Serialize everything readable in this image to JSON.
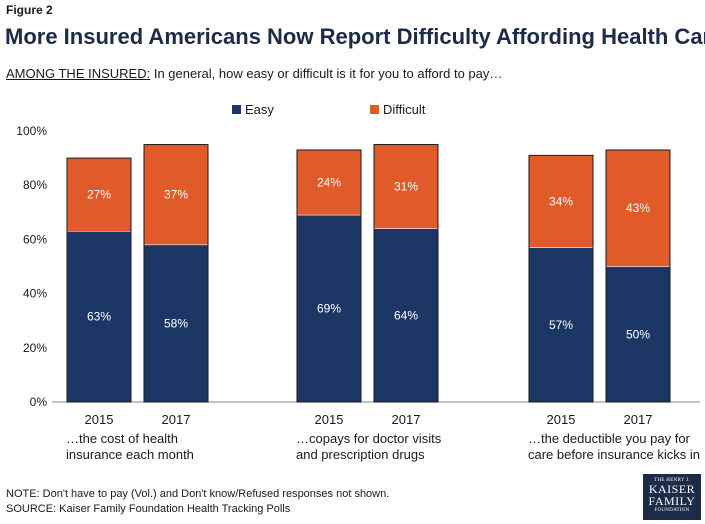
{
  "figure_label": "Figure 2",
  "title": "More Insured Americans Now Report Difficulty Affording Health Care",
  "subtitle_prefix": "AMONG THE INSURED:",
  "subtitle_text": " In general, how easy or difficult is it for you to afford to pay…",
  "notes": {
    "note": "NOTE: Don't have to pay (Vol.) and Don't know/Refused responses not shown.",
    "source": "SOURCE: Kaiser Family Foundation  Health Tracking Polls"
  },
  "logo": {
    "line1": "THE HENRY J.",
    "line2": "KAISER",
    "line3": "FAMILY",
    "line4": "FOUNDATION"
  },
  "chart_data": {
    "type": "bar",
    "stacked": true,
    "ylim": [
      0,
      100
    ],
    "yticks": [
      "0%",
      "20%",
      "40%",
      "60%",
      "80%",
      "100%"
    ],
    "grid": false,
    "legend_position": "top",
    "groups": [
      {
        "label_lines": [
          "…the cost of health",
          "insurance each month"
        ],
        "bars": [
          {
            "year": "2015",
            "easy": 63,
            "difficult": 27
          },
          {
            "year": "2017",
            "easy": 58,
            "difficult": 37
          }
        ]
      },
      {
        "label_lines": [
          "…copays for doctor visits",
          "and prescription drugs"
        ],
        "bars": [
          {
            "year": "2015",
            "easy": 69,
            "difficult": 24
          },
          {
            "year": "2017",
            "easy": 64,
            "difficult": 31
          }
        ]
      },
      {
        "label_lines": [
          "…the deductible you pay for",
          "care before insurance kicks in"
        ],
        "bars": [
          {
            "year": "2015",
            "easy": 57,
            "difficult": 34
          },
          {
            "year": "2017",
            "easy": 50,
            "difficult": 43
          }
        ]
      }
    ],
    "series": [
      {
        "name": "Easy",
        "key": "easy",
        "color": "#1c3766"
      },
      {
        "name": "Difficult",
        "key": "difficult",
        "color": "#e05a2a"
      }
    ]
  }
}
